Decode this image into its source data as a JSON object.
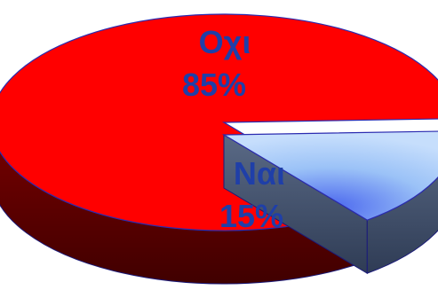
{
  "chart_data": {
    "type": "pie",
    "style": "3d-exploded",
    "title": "",
    "legend": "none",
    "slices": [
      {
        "label": "Οχι",
        "value": 85,
        "value_label": "85%",
        "color": "#ff0000",
        "label_color": "#1f3fa8"
      },
      {
        "label": "Ναι",
        "value": 15,
        "value_label": "15%",
        "color": "#a9cdfa",
        "label_color": "#1f3fa8",
        "exploded": true
      }
    ]
  }
}
